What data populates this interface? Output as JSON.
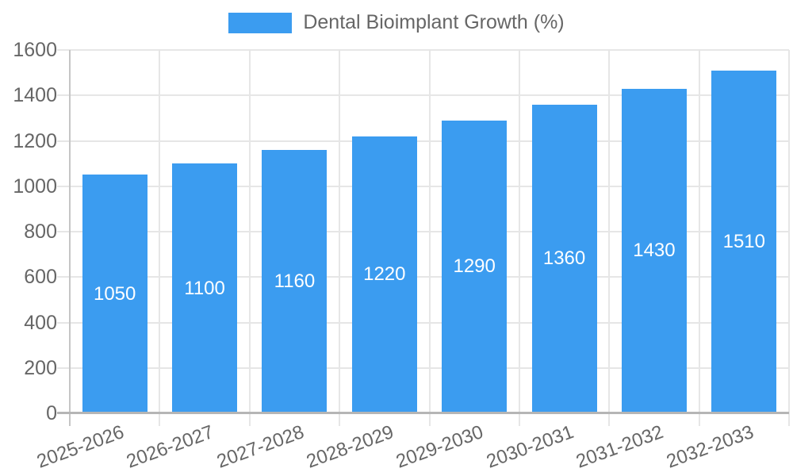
{
  "legend": {
    "position": "top",
    "label": "Dental Bioimplant Growth (%)"
  },
  "chart_data": {
    "type": "bar",
    "title": "Dental Bioimplant Growth (%)",
    "categories": [
      "2025-2026",
      "2026-2027",
      "2027-2028",
      "2028-2029",
      "2029-2030",
      "2030-2031",
      "2031-2032",
      "2032-2033"
    ],
    "series": [
      {
        "name": "Dental Bioimplant Growth (%)",
        "values": [
          1050,
          1100,
          1160,
          1220,
          1290,
          1360,
          1430,
          1510
        ]
      }
    ],
    "value_labels_shown": true,
    "xlabel": "",
    "ylabel": "",
    "ylim": [
      0,
      1600
    ],
    "y_ticks": [
      0,
      200,
      400,
      600,
      800,
      1000,
      1200,
      1400,
      1600
    ],
    "grid": true,
    "legend_position": "top",
    "x_label_rotation_deg": -20,
    "colors": {
      "bar": "#3b9cf0",
      "axis_text": "#666666",
      "value_label_text": "#ffffff",
      "gridline": "#e6e6e6",
      "axis_border": "#b5b5b5",
      "y_axis_border": "#c6c6c6",
      "background": "#ffffff"
    }
  }
}
